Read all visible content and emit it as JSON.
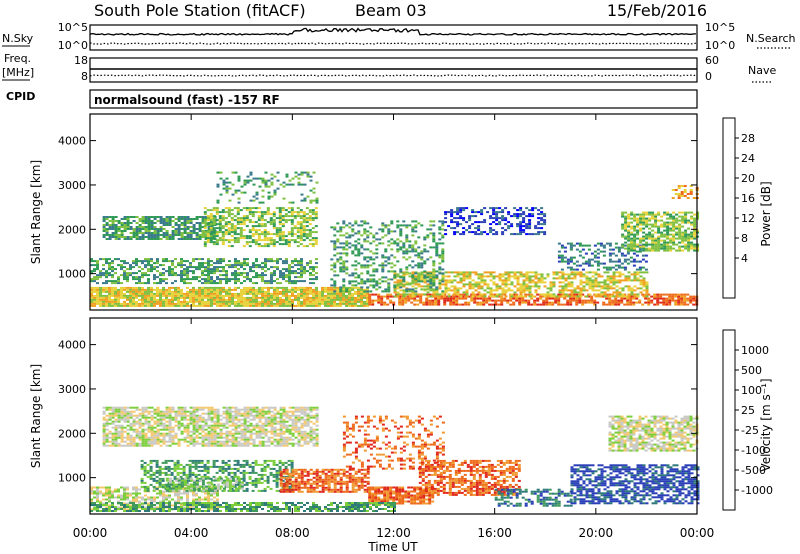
{
  "header": {
    "station": "South Pole Station (fitACF)",
    "beam": "Beam 03",
    "date": "15/Feb/2016"
  },
  "left_labels": {
    "nsky": "N.Sky",
    "freq": "Freq.",
    "mhz": "[MHz]",
    "cpid": "CPID"
  },
  "right_labels": {
    "nsearch": "N.Search",
    "nave": "Nave"
  },
  "noise_panel": {
    "left_ticks": [
      "10^5",
      "10^0"
    ],
    "right_ticks": [
      "10^5",
      "10^0"
    ]
  },
  "freq_panel": {
    "left_ticks": [
      "18",
      "8"
    ],
    "right_ticks": [
      "60",
      "0"
    ]
  },
  "cpid_text": "normalsound (fast) -157 RF",
  "xaxis": {
    "label": "Time UT",
    "ticks": [
      "00:00",
      "04:00",
      "08:00",
      "12:00",
      "16:00",
      "20:00",
      "00:00"
    ]
  },
  "colors": {
    "gray_scatter": "#c8c8c4"
  },
  "chart_data": [
    {
      "type": "heatmap",
      "name": "power",
      "ylabel": "Slant Range [km]",
      "yticks": [
        1000,
        2000,
        3000,
        4000
      ],
      "ylim": [
        180,
        4600
      ],
      "xlim": [
        0,
        24
      ],
      "colorbar": {
        "label": "Power [dB]",
        "ticks": [
          "28",
          "24",
          "20",
          "16",
          "12",
          "8",
          "4"
        ],
        "colors": [
          "#0000ff",
          "#2a3fb8",
          "#3a7a8c",
          "#2e9a55",
          "#7fc040",
          "#e8d23a",
          "#f0a020",
          "#ee6a1a",
          "#e02a18"
        ]
      },
      "bands": [
        {
          "t0": 0.0,
          "t1": 11.0,
          "r0": 250,
          "r1": 700,
          "level": 5,
          "density": 0.9
        },
        {
          "t0": 11.0,
          "t1": 24.0,
          "r0": 300,
          "r1": 550,
          "level": 7,
          "density": 0.75
        },
        {
          "t0": 12.0,
          "t1": 22.0,
          "r0": 500,
          "r1": 1050,
          "level": 5,
          "density": 0.6
        },
        {
          "t0": 0.0,
          "t1": 9.0,
          "r0": 800,
          "r1": 1350,
          "level": 3,
          "density": 0.55
        },
        {
          "t0": 0.5,
          "t1": 5.0,
          "r0": 1800,
          "r1": 2300,
          "level": 3,
          "density": 0.7
        },
        {
          "t0": 4.5,
          "t1": 9.0,
          "r0": 1600,
          "r1": 2500,
          "level": 4,
          "density": 0.6
        },
        {
          "t0": 9.5,
          "t1": 14.0,
          "r0": 600,
          "r1": 2200,
          "level": 3,
          "density": 0.35
        },
        {
          "t0": 14.0,
          "t1": 18.0,
          "r0": 1900,
          "r1": 2500,
          "level": 1,
          "density": 0.45
        },
        {
          "t0": 18.5,
          "t1": 22.0,
          "r0": 1100,
          "r1": 1700,
          "level": 2,
          "density": 0.35
        },
        {
          "t0": 21.0,
          "t1": 24.0,
          "r0": 1500,
          "r1": 2400,
          "level": 4,
          "density": 0.7
        },
        {
          "t0": 5.0,
          "t1": 9.0,
          "r0": 2600,
          "r1": 3300,
          "level": 3,
          "density": 0.25
        },
        {
          "t0": 23.0,
          "t1": 24.0,
          "r0": 2700,
          "r1": 3000,
          "level": 6,
          "density": 0.5
        }
      ]
    },
    {
      "type": "heatmap",
      "name": "velocity",
      "ylabel": "Slant Range [km]",
      "yticks": [
        1000,
        2000,
        3000,
        4000
      ],
      "ylim": [
        180,
        4600
      ],
      "xlim": [
        0,
        24
      ],
      "colorbar": {
        "label": "Velocity [m s⁻¹]",
        "ticks": [
          "1000",
          "500",
          "100",
          "25",
          "-25",
          "-100",
          "-500",
          "-1000"
        ],
        "colors": [
          "#e0281c",
          "#ee6a1a",
          "#f09a30",
          "#f4c86e",
          "#c8c8c4",
          "#7ccf3a",
          "#3f9a5c",
          "#2e7a7a",
          "#2a3fb8"
        ]
      },
      "bands": [
        {
          "t0": 0.5,
          "t1": 9.0,
          "r0": 1700,
          "r1": 2600,
          "level": 4,
          "density": 0.75
        },
        {
          "t0": 20.5,
          "t1": 24.0,
          "r0": 1600,
          "r1": 2400,
          "level": 4,
          "density": 0.7
        },
        {
          "t0": 0.0,
          "t1": 5.0,
          "r0": 300,
          "r1": 800,
          "level": 4,
          "density": 0.6
        },
        {
          "t0": 2.0,
          "t1": 8.0,
          "r0": 700,
          "r1": 1400,
          "level": 6,
          "density": 0.55
        },
        {
          "t0": 3.0,
          "t1": 6.0,
          "r0": 700,
          "r1": 1000,
          "level": 5,
          "density": 0.7
        },
        {
          "t0": 7.5,
          "t1": 11.0,
          "r0": 700,
          "r1": 1200,
          "level": 1,
          "density": 0.75
        },
        {
          "t0": 11.0,
          "t1": 13.5,
          "r0": 400,
          "r1": 800,
          "level": 1,
          "density": 0.85
        },
        {
          "t0": 13.0,
          "t1": 17.0,
          "r0": 600,
          "r1": 1400,
          "level": 1,
          "density": 0.6
        },
        {
          "t0": 16.0,
          "t1": 19.0,
          "r0": 350,
          "r1": 750,
          "level": 7,
          "density": 0.5
        },
        {
          "t0": 19.0,
          "t1": 24.0,
          "r0": 400,
          "r1": 1300,
          "level": 8,
          "density": 0.65
        },
        {
          "t0": 10.0,
          "t1": 14.0,
          "r0": 1200,
          "r1": 2400,
          "level": 1,
          "density": 0.3
        },
        {
          "t0": 0.0,
          "t1": 12.0,
          "r0": 250,
          "r1": 450,
          "level": 6,
          "density": 0.7
        }
      ]
    }
  ]
}
